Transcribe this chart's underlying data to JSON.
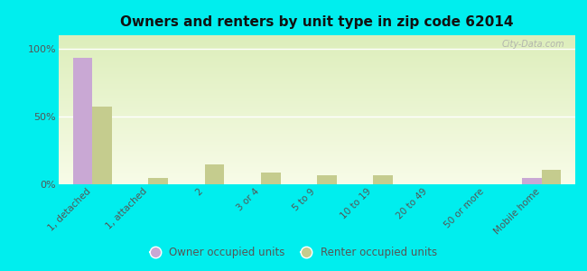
{
  "title": "Owners and renters by unit type in zip code 62014",
  "categories": [
    "1, detached",
    "1, attached",
    "2",
    "3 or 4",
    "5 to 9",
    "10 to 19",
    "20 to 49",
    "50 or more",
    "Mobile home"
  ],
  "owner_values": [
    93,
    0,
    0,
    0,
    0,
    0,
    0,
    0,
    5
  ],
  "renter_values": [
    57,
    5,
    15,
    9,
    7,
    7,
    0,
    0,
    11
  ],
  "owner_color": "#c9a8d4",
  "renter_color": "#c5cc8e",
  "background_color": "#00eeee",
  "plot_bg_top": "#ddeebb",
  "plot_bg_bottom": "#f8fce8",
  "ylabel_ticks": [
    "0%",
    "50%",
    "100%"
  ],
  "ytick_vals": [
    0,
    50,
    100
  ],
  "ylim": [
    0,
    110
  ],
  "bar_width": 0.35,
  "watermark": "City-Data.com",
  "legend_labels": [
    "Owner occupied units",
    "Renter occupied units"
  ]
}
